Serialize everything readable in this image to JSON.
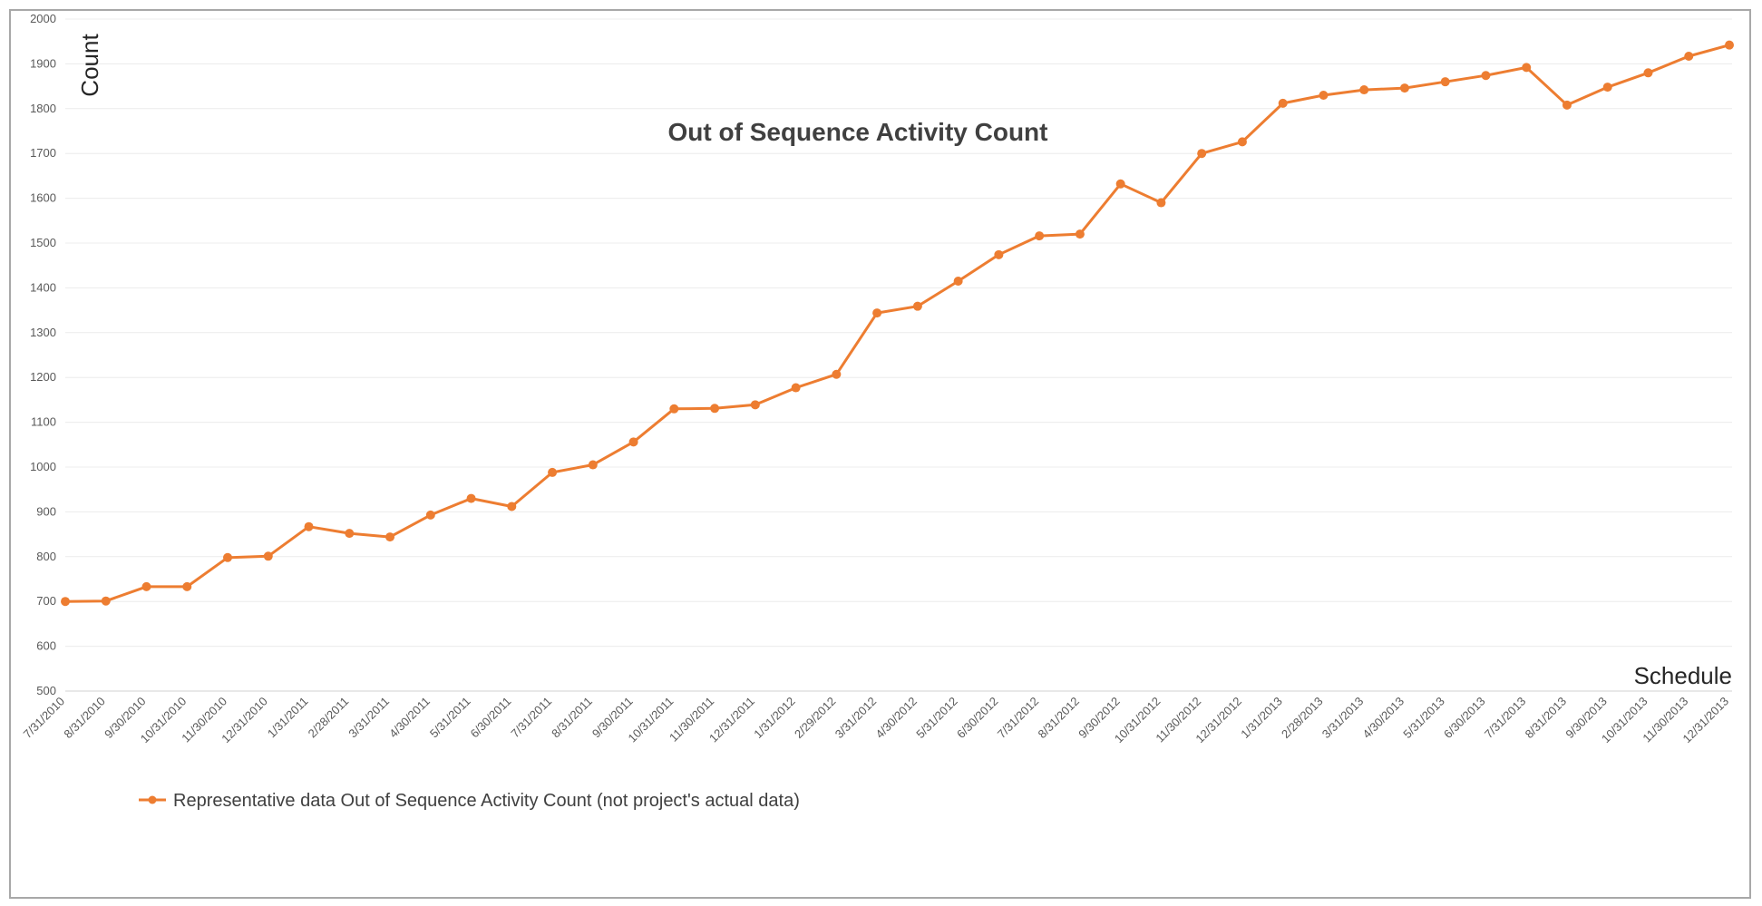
{
  "chart_data": {
    "type": "line",
    "title": "Out of Sequence Activity Count",
    "xlabel": "Schedule",
    "ylabel": "Count",
    "ylim": [
      500,
      2000
    ],
    "yticks": [
      500,
      600,
      700,
      800,
      900,
      1000,
      1100,
      1200,
      1300,
      1400,
      1500,
      1600,
      1700,
      1800,
      1900,
      2000
    ],
    "grid": true,
    "legend": "bottom-left",
    "categories": [
      "7/31/2010",
      "8/31/2010",
      "9/30/2010",
      "10/31/2010",
      "11/30/2010",
      "12/31/2010",
      "1/31/2011",
      "2/28/2011",
      "3/31/2011",
      "4/30/2011",
      "5/31/2011",
      "6/30/2011",
      "7/31/2011",
      "8/31/2011",
      "9/30/2011",
      "10/31/2011",
      "11/30/2011",
      "12/31/2011",
      "1/31/2012",
      "2/29/2012",
      "3/31/2012",
      "4/30/2012",
      "5/31/2012",
      "6/30/2012",
      "7/31/2012",
      "8/31/2012",
      "9/30/2012",
      "10/31/2012",
      "11/30/2012",
      "12/31/2012",
      "1/31/2013",
      "2/28/2013",
      "3/31/2013",
      "4/30/2013",
      "5/31/2013",
      "6/30/2013",
      "7/31/2013",
      "8/31/2013",
      "9/30/2013",
      "10/31/2013",
      "11/30/2013",
      "12/31/2013"
    ],
    "series": [
      {
        "name": "Representative data Out of Sequence Activity Count (not project's actual data)",
        "color": "#ed7d31",
        "values": [
          700,
          701,
          733,
          733,
          798,
          801,
          867,
          852,
          844,
          893,
          930,
          912,
          988,
          1005,
          1056,
          1130,
          1131,
          1139,
          1177,
          1207,
          1344,
          1359,
          1415,
          1474,
          1516,
          1520,
          1632,
          1590,
          1700,
          1726,
          1812,
          1830,
          1842,
          1846,
          1860,
          1874,
          1892,
          1808,
          1848,
          1880,
          1917,
          1942
        ]
      }
    ]
  }
}
